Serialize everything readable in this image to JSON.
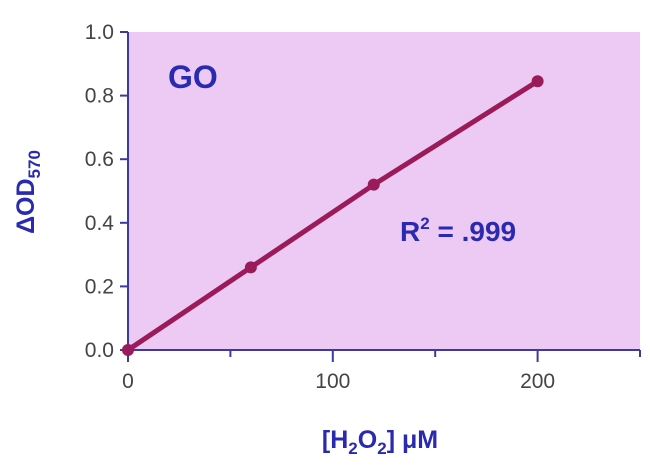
{
  "chart_data": {
    "type": "line",
    "title": "",
    "x": [
      0,
      60,
      120,
      200
    ],
    "series": [
      {
        "values": [
          0.0,
          0.26,
          0.52,
          0.845
        ],
        "color": "#9b1b5a"
      }
    ],
    "xlim": [
      0,
      250
    ],
    "ylim": [
      0.0,
      1.0
    ],
    "x_ticks": [
      "0",
      "100",
      "200"
    ],
    "x_tick_values": [
      0,
      100,
      200
    ],
    "x_minor_tick_values": [
      50,
      150,
      250
    ],
    "y_ticks": [
      "0.0",
      "0.2",
      "0.4",
      "0.6",
      "0.8",
      "1.0"
    ],
    "y_tick_values": [
      0.0,
      0.2,
      0.4,
      0.6,
      0.8,
      1.0
    ],
    "xlabel": {
      "main": "[H",
      "sub1": "2",
      "mid": "O",
      "sub2": "2",
      "end": "] μM"
    },
    "ylabel": {
      "main": "ΔOD",
      "sub": "570"
    },
    "annotations": {
      "group": "GO",
      "r2_main": "R",
      "r2_sup": "2",
      "r2_value": " = .999"
    },
    "grid": false,
    "plot_background": "#eccaf4",
    "axis_color": "#3a3aa0"
  }
}
